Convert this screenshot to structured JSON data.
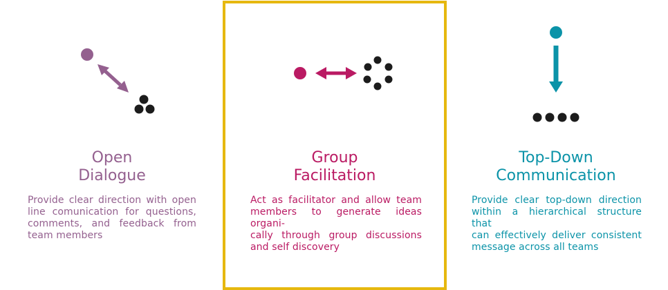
{
  "colors": {
    "purple": "#94608f",
    "magenta": "#ba1a63",
    "teal": "#0b93a8",
    "dark": "#1c1c1c",
    "highlight": "#e6b80f"
  },
  "panels": [
    {
      "title_line1": "Open",
      "title_line2": "Dialogue",
      "description_lines": [
        "Provide clear direction with open",
        "line comunication for questions,",
        "comments, and feedback from",
        "team members"
      ],
      "icon": "two-way-diagonal-arrow-icon"
    },
    {
      "title_line1": "Group",
      "title_line2": "Facilitation",
      "description_lines": [
        "Act as facilitator and allow team",
        "members to generate ideas organi-",
        "cally through group discussions",
        "and self discovery"
      ],
      "icon": "two-way-horizontal-arrow-icon",
      "highlighted": true
    },
    {
      "title_line1": "Top-Down",
      "title_line2": "Communication",
      "description_lines": [
        "Provide clear top-down direction",
        "within a hierarchical structure that",
        "can effectively deliver consistent",
        "message across all teams"
      ],
      "icon": "down-arrow-icon"
    }
  ]
}
